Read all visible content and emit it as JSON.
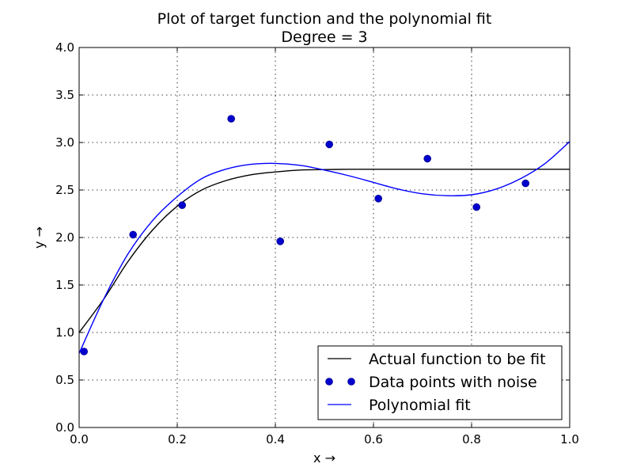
{
  "chart_data": {
    "type": "line",
    "title": "Plot of target function and the polynomial fit",
    "subtitle": "Degree = 3",
    "xlabel": "x →",
    "ylabel": "y →",
    "xlim": [
      0.0,
      1.0
    ],
    "ylim": [
      0.0,
      4.0
    ],
    "x_ticks": [
      "0.0",
      "0.2",
      "0.4",
      "0.6",
      "0.8",
      "1.0"
    ],
    "y_ticks": [
      "0.0",
      "0.5",
      "1.0",
      "1.5",
      "2.0",
      "2.5",
      "3.0",
      "3.5",
      "4.0"
    ],
    "grid": true,
    "legend_position": "lower-right",
    "series": [
      {
        "name": "Actual function to be fit",
        "style": "line",
        "color": "#000000",
        "x": [
          0.0,
          0.05,
          0.1,
          0.15,
          0.2,
          0.25,
          0.3,
          0.35,
          0.4,
          0.45,
          0.5,
          0.55,
          0.6,
          0.65,
          0.7,
          0.75,
          0.8,
          0.85,
          0.9,
          0.95,
          1.0
        ],
        "y": [
          1.0,
          1.35,
          1.75,
          2.08,
          2.33,
          2.5,
          2.6,
          2.66,
          2.69,
          2.71,
          2.715,
          2.718,
          2.718,
          2.718,
          2.718,
          2.718,
          2.718,
          2.718,
          2.718,
          2.718,
          2.718
        ]
      },
      {
        "name": "Data points with noise",
        "style": "markers",
        "color": "#0000cc",
        "x": [
          0.01,
          0.11,
          0.21,
          0.31,
          0.41,
          0.51,
          0.61,
          0.71,
          0.81,
          0.91
        ],
        "y": [
          0.8,
          2.03,
          2.34,
          3.25,
          1.96,
          2.98,
          2.41,
          2.83,
          2.32,
          2.57
        ]
      },
      {
        "name": "Polynomial fit",
        "style": "line",
        "color": "#0000ff",
        "x": [
          0.0,
          0.05,
          0.1,
          0.15,
          0.2,
          0.25,
          0.3,
          0.35,
          0.4,
          0.45,
          0.5,
          0.55,
          0.6,
          0.65,
          0.7,
          0.75,
          0.8,
          0.85,
          0.9,
          0.95,
          1.0
        ],
        "y": [
          0.78,
          1.35,
          1.83,
          2.18,
          2.43,
          2.62,
          2.72,
          2.77,
          2.78,
          2.76,
          2.71,
          2.65,
          2.58,
          2.51,
          2.46,
          2.44,
          2.45,
          2.51,
          2.62,
          2.78,
          3.01
        ]
      }
    ]
  }
}
